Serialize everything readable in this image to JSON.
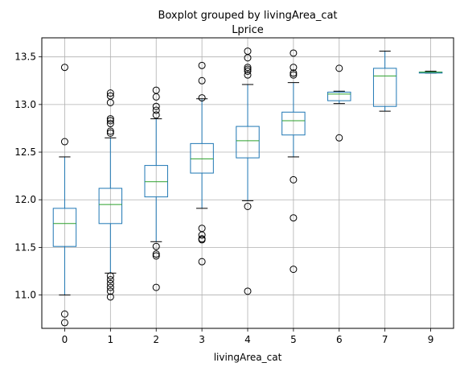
{
  "chart_data": {
    "type": "boxplot",
    "title": "Boxplot grouped by livingArea_cat",
    "subtitle": "Lprice",
    "xlabel": "livingArea_cat",
    "ylabel": "",
    "ylim": [
      10.65,
      13.7
    ],
    "yticks": [
      11.0,
      11.5,
      12.0,
      12.5,
      13.0,
      13.5
    ],
    "ytick_labels": [
      "11.0",
      "11.5",
      "12.0",
      "12.5",
      "13.0",
      "13.5"
    ],
    "grid": true,
    "colors": {
      "box": "#1f77b4",
      "median": "#2ca02c",
      "whisker": "#000000",
      "flier": "#000000",
      "grid": "#b0b0b0"
    },
    "categories": [
      "0",
      "1",
      "2",
      "3",
      "4",
      "5",
      "6",
      "7",
      "9"
    ],
    "boxes": [
      {
        "category": "0",
        "whislo": 11.0,
        "q1": 11.51,
        "med": 11.75,
        "q3": 11.91,
        "whishi": 12.45,
        "fliers": [
          13.39,
          12.61,
          10.8,
          10.71
        ]
      },
      {
        "category": "1",
        "whislo": 11.23,
        "q1": 11.75,
        "med": 11.95,
        "q3": 12.12,
        "whishi": 12.65,
        "fliers": [
          13.12,
          13.09,
          13.02,
          12.85,
          12.83,
          12.8,
          12.72,
          12.7,
          11.2,
          11.16,
          11.12,
          11.08,
          11.04,
          10.98
        ]
      },
      {
        "category": "2",
        "whislo": 11.56,
        "q1": 12.03,
        "med": 12.19,
        "q3": 12.36,
        "whishi": 12.85,
        "fliers": [
          13.15,
          13.08,
          12.98,
          12.94,
          12.89,
          11.51,
          11.43,
          11.41,
          11.08
        ]
      },
      {
        "category": "3",
        "whislo": 11.91,
        "q1": 12.28,
        "med": 12.43,
        "q3": 12.59,
        "whishi": 13.06,
        "fliers": [
          13.41,
          13.25,
          13.07,
          11.7,
          11.63,
          11.59,
          11.58,
          11.35
        ]
      },
      {
        "category": "4",
        "whislo": 11.99,
        "q1": 12.44,
        "med": 12.62,
        "q3": 12.77,
        "whishi": 13.21,
        "fliers": [
          13.56,
          13.49,
          13.39,
          13.37,
          13.35,
          13.31,
          11.93,
          11.04
        ]
      },
      {
        "category": "5",
        "whislo": 12.45,
        "q1": 12.68,
        "med": 12.83,
        "q3": 12.92,
        "whishi": 13.23,
        "fliers": [
          13.54,
          13.39,
          13.33,
          13.31,
          12.21,
          11.81,
          11.27
        ]
      },
      {
        "category": "6",
        "whislo": 13.01,
        "q1": 13.04,
        "med": 13.11,
        "q3": 13.13,
        "whishi": 13.14,
        "fliers": [
          13.38,
          12.65
        ]
      },
      {
        "category": "7",
        "whislo": 12.93,
        "q1": 12.98,
        "med": 13.3,
        "q3": 13.38,
        "whishi": 13.56,
        "fliers": []
      },
      {
        "category": "9",
        "whislo": 13.33,
        "q1": 13.33,
        "med": 13.34,
        "q3": 13.34,
        "whishi": 13.35,
        "fliers": []
      }
    ]
  }
}
